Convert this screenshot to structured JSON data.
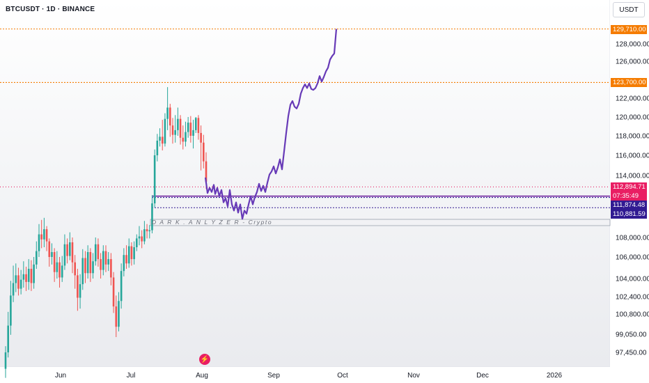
{
  "header": {
    "symbol_title": "BTCUSDT · 1D · BINANCE",
    "currency": "USDT"
  },
  "watermark": "D A R K . A N L Y Z E R - Crypto",
  "price_tags": {
    "upper_target": "129,710.00",
    "lower_target": "123,700.00",
    "last_price": "112,894.71",
    "countdown": "07:35:49",
    "level_a": "111,874.48",
    "level_b": "110,881.59"
  },
  "colors": {
    "up": "#26a69a",
    "down": "#ef5350",
    "projection": "#673ab7",
    "target": "#f57c00",
    "last": "#e91e63",
    "level": "#311b92"
  },
  "chart_data": {
    "type": "candlestick",
    "symbol": "BTCUSDT",
    "interval": "1D",
    "exchange": "BINANCE",
    "y_axis_ticks": [
      128000,
      126000,
      122000,
      120000,
      118000,
      116000,
      114000,
      108000,
      106000,
      104000,
      102400,
      100800,
      99050,
      97450
    ],
    "y_axis_tick_labels": [
      "128,000.00",
      "126,000.00",
      "122,000.00",
      "120,000.00",
      "118,000.00",
      "116,000.00",
      "114,000.00",
      "108,000.00",
      "106,000.00",
      "104,000.00",
      "102,400.00",
      "100,800.00",
      "99,050.00",
      "97,450.00"
    ],
    "x_axis_labels": [
      "Jun",
      "Jul",
      "Aug",
      "Sep",
      "Oct",
      "Nov",
      "Dec",
      "2026"
    ],
    "horizontal_levels": [
      129710,
      123700,
      112894.71,
      111874.48,
      110881.59
    ],
    "candles": [
      [
        96000,
        97450,
        95200,
        98000
      ],
      [
        97450,
        99800,
        97000,
        101000
      ],
      [
        99800,
        102500,
        99000,
        103800
      ],
      [
        102500,
        103600,
        101900,
        105200
      ],
      [
        103600,
        104300,
        102800,
        105400
      ],
      [
        104300,
        103100,
        102500,
        105000
      ],
      [
        103100,
        103900,
        102600,
        104800
      ],
      [
        103900,
        104400,
        103200,
        105600
      ],
      [
        104400,
        103700,
        102900,
        105100
      ],
      [
        103700,
        104900,
        103000,
        105800
      ],
      [
        104900,
        103600,
        102900,
        105700
      ],
      [
        103600,
        105300,
        103100,
        106000
      ],
      [
        105300,
        106600,
        104900,
        107600
      ],
      [
        106600,
        108300,
        106000,
        109300
      ],
      [
        108300,
        107800,
        106900,
        109700
      ],
      [
        107800,
        108800,
        107000,
        109900
      ],
      [
        108800,
        107600,
        106600,
        109100
      ],
      [
        107600,
        106000,
        105100,
        107900
      ],
      [
        106000,
        106500,
        105300,
        107400
      ],
      [
        106500,
        104600,
        103700,
        106900
      ],
      [
        104600,
        105500,
        104000,
        106600
      ],
      [
        105500,
        104100,
        103200,
        106000
      ],
      [
        104100,
        105200,
        103700,
        106100
      ],
      [
        105200,
        107300,
        104800,
        108300
      ],
      [
        107300,
        106100,
        105400,
        107900
      ],
      [
        106100,
        107500,
        105700,
        108500
      ],
      [
        107500,
        105500,
        104500,
        108000
      ],
      [
        105500,
        104300,
        103100,
        106200
      ],
      [
        104300,
        102300,
        101100,
        104900
      ],
      [
        102300,
        103500,
        101300,
        104400
      ],
      [
        103500,
        105900,
        103000,
        106800
      ],
      [
        105900,
        104500,
        103600,
        106600
      ],
      [
        104500,
        106500,
        104000,
        107200
      ],
      [
        106500,
        104500,
        103700,
        106900
      ],
      [
        104500,
        105600,
        104000,
        106400
      ],
      [
        105600,
        107300,
        105200,
        108000
      ],
      [
        107300,
        105800,
        105100,
        107900
      ],
      [
        105800,
        104800,
        104000,
        106400
      ],
      [
        104800,
        106600,
        104300,
        107200
      ],
      [
        106600,
        105300,
        104600,
        107200
      ],
      [
        105300,
        105800,
        104700,
        106500
      ],
      [
        105800,
        104100,
        103400,
        106400
      ],
      [
        104100,
        101500,
        100900,
        104600
      ],
      [
        101500,
        99700,
        98800,
        102500
      ],
      [
        99700,
        102000,
        99300,
        102800
      ],
      [
        102000,
        104700,
        101300,
        105400
      ],
      [
        104700,
        106200,
        104200,
        106900
      ],
      [
        106200,
        105400,
        104900,
        107200
      ],
      [
        105400,
        107100,
        105000,
        107900
      ],
      [
        107100,
        105800,
        105200,
        107500
      ],
      [
        105800,
        107000,
        105300,
        107600
      ],
      [
        107000,
        107900,
        106600,
        108300
      ],
      [
        107900,
        108100,
        107200,
        109100
      ],
      [
        108100,
        107600,
        106900,
        108700
      ],
      [
        107600,
        108800,
        107300,
        109600
      ],
      [
        108800,
        108600,
        107900,
        109300
      ],
      [
        108600,
        108700,
        107900,
        109200
      ],
      [
        108700,
        111300,
        108400,
        112100
      ],
      [
        111300,
        116000,
        110900,
        116600
      ],
      [
        116000,
        117500,
        115400,
        118200
      ],
      [
        117500,
        117900,
        116900,
        118800
      ],
      [
        117900,
        117200,
        116500,
        119700
      ],
      [
        117200,
        119800,
        116900,
        120400
      ],
      [
        119800,
        121000,
        118600,
        123200
      ],
      [
        121000,
        119100,
        117900,
        121400
      ],
      [
        119100,
        118100,
        117200,
        119900
      ],
      [
        118100,
        118600,
        117300,
        120200
      ],
      [
        118600,
        119800,
        118000,
        121000
      ],
      [
        119800,
        117800,
        117100,
        120200
      ],
      [
        117800,
        117400,
        116600,
        119100
      ],
      [
        117400,
        118400,
        116900,
        119500
      ],
      [
        118400,
        119400,
        117800,
        120000
      ],
      [
        119400,
        118000,
        117300,
        120100
      ],
      [
        118000,
        118600,
        116700,
        119700
      ],
      [
        118600,
        119900,
        118300,
        120000
      ],
      [
        119900,
        118300,
        117600,
        120200
      ],
      [
        118300,
        117300,
        114500,
        119100
      ],
      [
        117300,
        115400,
        114700,
        118100
      ],
      [
        115400,
        113400,
        112700,
        116300
      ]
    ],
    "projection_path": [
      [
        295,
        113800
      ],
      [
        298,
        112300
      ],
      [
        301,
        112800
      ],
      [
        304,
        112400
      ],
      [
        307,
        113100
      ],
      [
        309,
        112200
      ],
      [
        312,
        112800
      ],
      [
        315,
        112000
      ],
      [
        318,
        112600
      ],
      [
        321,
        111400
      ],
      [
        324,
        111800
      ],
      [
        327,
        111000
      ],
      [
        330,
        112600
      ],
      [
        333,
        111200
      ],
      [
        336,
        110600
      ],
      [
        339,
        111400
      ],
      [
        342,
        110400
      ],
      [
        345,
        111200
      ],
      [
        348,
        109800
      ],
      [
        351,
        110600
      ],
      [
        354,
        110300
      ],
      [
        357,
        111200
      ],
      [
        360,
        112000
      ],
      [
        363,
        111200
      ],
      [
        366,
        111900
      ],
      [
        369,
        112400
      ],
      [
        372,
        113200
      ],
      [
        375,
        112500
      ],
      [
        378,
        113000
      ],
      [
        381,
        112400
      ],
      [
        384,
        113300
      ],
      [
        387,
        114100
      ],
      [
        390,
        114400
      ],
      [
        393,
        114900
      ],
      [
        396,
        114200
      ],
      [
        399,
        114800
      ],
      [
        402,
        115600
      ],
      [
        405,
        114600
      ],
      [
        408,
        116400
      ],
      [
        411,
        118300
      ],
      [
        414,
        120100
      ],
      [
        417,
        121300
      ],
      [
        420,
        121700
      ],
      [
        423,
        121100
      ],
      [
        426,
        120900
      ],
      [
        429,
        121400
      ],
      [
        432,
        122500
      ],
      [
        435,
        123100
      ],
      [
        438,
        123500
      ],
      [
        441,
        123100
      ],
      [
        444,
        123600
      ],
      [
        447,
        123000
      ],
      [
        450,
        122900
      ],
      [
        453,
        123100
      ],
      [
        456,
        123600
      ],
      [
        459,
        124400
      ],
      [
        462,
        123800
      ],
      [
        465,
        124300
      ],
      [
        468,
        124900
      ],
      [
        471,
        125300
      ],
      [
        474,
        126200
      ],
      [
        477,
        126600
      ],
      [
        480,
        126900
      ],
      [
        483,
        129710
      ]
    ]
  }
}
